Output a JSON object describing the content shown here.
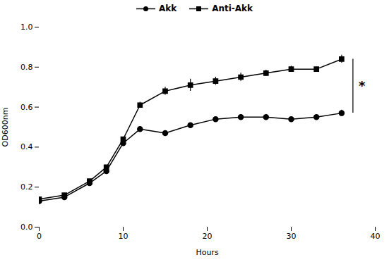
{
  "chart_data": {
    "type": "line",
    "xlabel": "Hours",
    "ylabel": "OD600nm",
    "x": [
      0,
      3,
      6,
      8,
      10,
      12,
      15,
      18,
      21,
      24,
      27,
      30,
      33,
      36
    ],
    "series": [
      {
        "name": "Akk",
        "color": "#000000",
        "marker": "circle",
        "line_style": "solid",
        "values": [
          0.13,
          0.15,
          0.22,
          0.28,
          0.42,
          0.49,
          0.47,
          0.51,
          0.54,
          0.55,
          0.55,
          0.54,
          0.55,
          0.57
        ],
        "errors": [
          0.005,
          0.005,
          0.008,
          0.01,
          0.01,
          0.01,
          0.01,
          0.01,
          0.01,
          0.01,
          0.01,
          0.01,
          0.01,
          0.015
        ]
      },
      {
        "name": "Anti-Akk",
        "color": "#000000",
        "marker": "square",
        "line_style": "solid",
        "values": [
          0.14,
          0.16,
          0.23,
          0.3,
          0.44,
          0.61,
          0.68,
          0.71,
          0.73,
          0.75,
          0.77,
          0.79,
          0.79,
          0.84
        ],
        "errors": [
          0.005,
          0.005,
          0.008,
          0.01,
          0.01,
          0.015,
          0.02,
          0.03,
          0.02,
          0.02,
          0.015,
          0.015,
          0.01,
          0.02
        ]
      }
    ],
    "xlim": [
      0,
      40
    ],
    "xticks": [
      0,
      10,
      20,
      30,
      40
    ],
    "ylim": [
      0,
      1.0
    ],
    "yticks": [
      {
        "value": 0.0,
        "label": "0.0"
      },
      0.2,
      0.4,
      0.6,
      0.8,
      {
        "value": 1.0,
        "label": "1.0"
      }
    ],
    "annotations": [
      {
        "text": "*"
      }
    ],
    "legend": "top",
    "grid": false
  }
}
